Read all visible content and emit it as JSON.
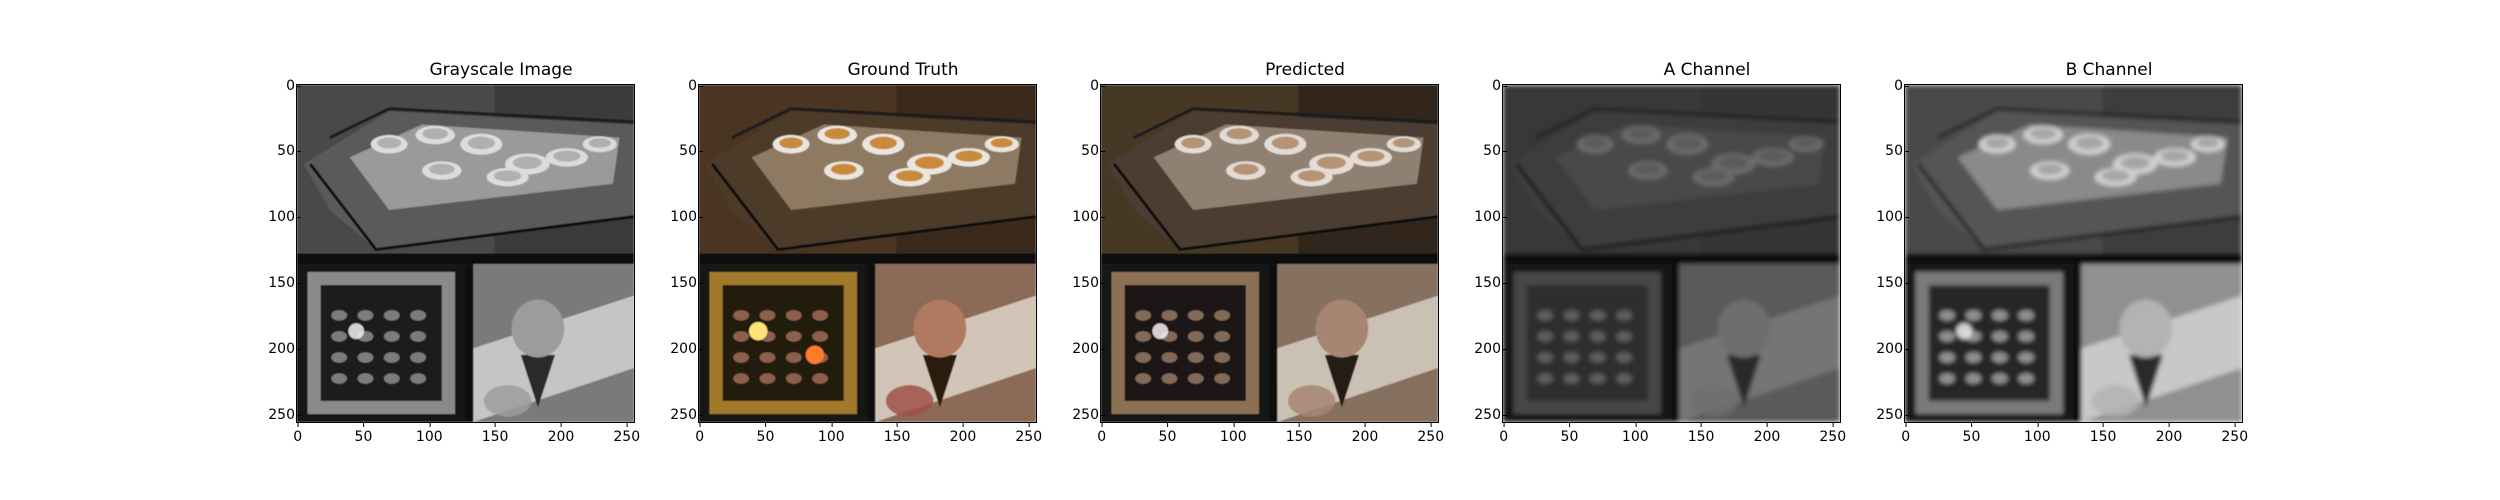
{
  "panels": [
    {
      "title": "Grayscale Image",
      "variant": "gray"
    },
    {
      "title": "Ground Truth",
      "variant": "color"
    },
    {
      "title": "Predicted",
      "variant": "pred"
    },
    {
      "title": "A Channel",
      "variant": "achan"
    },
    {
      "title": "B Channel",
      "variant": "bchan"
    }
  ],
  "axes": {
    "y_ticks": [
      "0",
      "50",
      "100",
      "150",
      "200",
      "250"
    ],
    "x_ticks": [
      "0",
      "50",
      "100",
      "150",
      "200",
      "250"
    ]
  }
}
